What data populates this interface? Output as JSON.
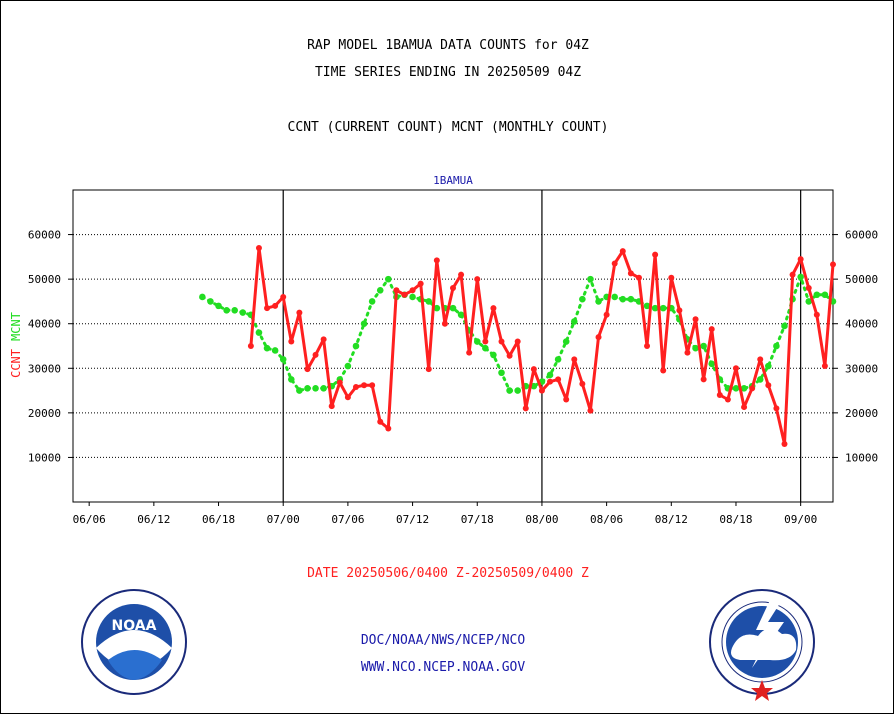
{
  "title_line1": "RAP MODEL 1BAMUA DATA COUNTS for 04Z",
  "title_line2": "TIME SERIES ENDING IN 20250509 04Z",
  "subtitle": "CCNT (CURRENT COUNT) MCNT (MONTHLY COUNT)",
  "date_range": "DATE 20250506/0400 Z-20250509/0400 Z",
  "footer_line1": "DOC/NOAA/NWS/NCEP/NCO",
  "footer_line2": "WWW.NCO.NCEP.NOAA.GOV",
  "logos": {
    "left": {
      "name": "noaa-logo",
      "text": "NOAA"
    },
    "right": {
      "name": "nws-logo"
    }
  },
  "colors": {
    "ccnt": "#ff2020",
    "mcnt": "#22dd22",
    "station": "#1a1aaa",
    "footer": "#1a1aaa",
    "date": "#ff2020"
  },
  "chart_data": {
    "type": "line",
    "title": "1BAMUA",
    "ylabel_left": [
      "CCNT",
      "MCNT"
    ],
    "ylim": [
      0,
      70000
    ],
    "yticks": [
      10000,
      20000,
      30000,
      40000,
      50000,
      60000
    ],
    "ytick_labels": [
      "10000",
      "20000",
      "30000",
      "40000",
      "50000",
      "60000"
    ],
    "x_index_range": [
      0,
      94
    ],
    "xtick_labels": [
      "06/06",
      "06/12",
      "06/18",
      "07/00",
      "07/06",
      "07/12",
      "07/18",
      "08/00",
      "08/06",
      "08/12",
      "08/18",
      "09/00"
    ],
    "xtick_index": [
      2,
      10,
      18,
      26,
      34,
      42,
      50,
      58,
      66,
      74,
      82,
      90
    ],
    "day_boundaries_index": [
      26,
      58,
      90
    ],
    "grid": true,
    "series": [
      {
        "name": "CCNT",
        "color": "#ff2020",
        "values": [
          35000,
          57000,
          43500,
          44000,
          46000,
          36000,
          42500,
          29800,
          33000,
          36500,
          21500,
          26800,
          23500,
          25800,
          26200,
          26200,
          18000,
          16500,
          47500,
          46500,
          47500,
          49000,
          29800,
          54200,
          40000,
          48000,
          51000,
          33500,
          50000,
          36000,
          43500,
          36000,
          32800,
          36000,
          21000,
          29800,
          25000,
          27000,
          27500,
          23000,
          32000,
          26500,
          20500,
          37000,
          42000,
          53500,
          56300,
          51300,
          50300,
          35000,
          55500,
          29500,
          50300,
          43000,
          33500,
          41000,
          27500,
          38800,
          24000,
          23000,
          30000,
          21300,
          25500,
          32000,
          26200,
          21000,
          13000,
          51000,
          54500,
          48000,
          42000,
          30500,
          53300
        ],
        "x_start_index": 22
      },
      {
        "name": "MCNT",
        "color": "#22dd22",
        "values": [
          46000,
          45000,
          44000,
          43000,
          43000,
          42500,
          42000,
          38000,
          34500,
          34000,
          32000,
          27500,
          25000,
          25500,
          25500,
          25500,
          26000,
          27500,
          30500,
          35000,
          40000,
          45000,
          47500,
          50000,
          46000,
          46500,
          46000,
          45500,
          45000,
          43500,
          43500,
          43500,
          42000,
          38500,
          36000,
          34500,
          33000,
          29000,
          25000,
          25000,
          26000,
          26000,
          27000,
          28500,
          32000,
          36000,
          40500,
          45500,
          50000,
          45000,
          46000,
          46000,
          45500,
          45500,
          45000,
          44000,
          43500,
          43500,
          43500,
          41000,
          36500,
          34500,
          35000,
          31000,
          27500,
          25500,
          25500,
          25500,
          26000,
          27500,
          30500,
          35000,
          39500,
          45500,
          50500,
          45000,
          46500,
          46500,
          45000
        ],
        "x_start_index": 16
      }
    ]
  }
}
